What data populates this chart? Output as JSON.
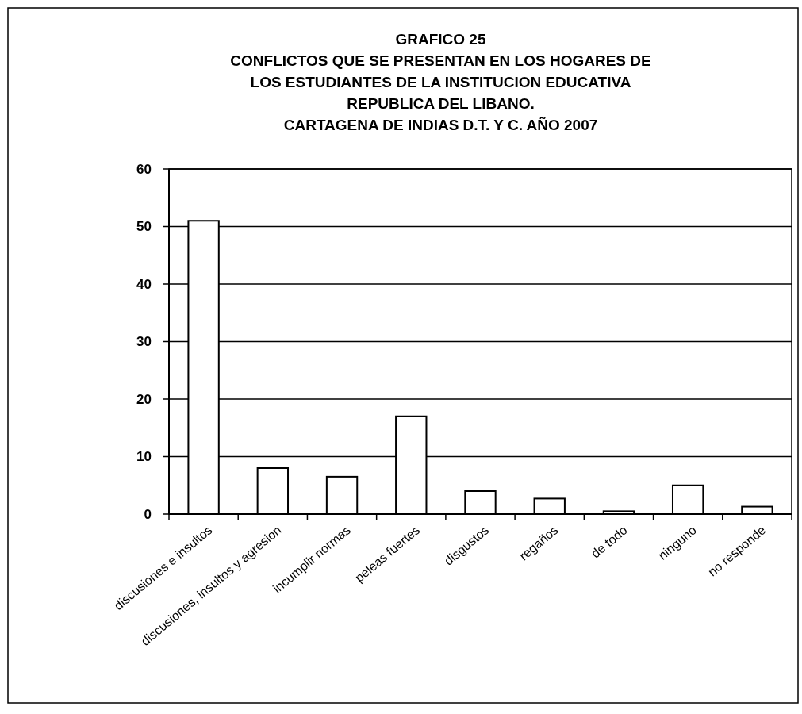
{
  "chart_data": {
    "type": "bar",
    "title": "GRAFICO 25\nCONFLICTOS QUE SE PRESENTAN EN LOS HOGARES DE\nLOS ESTUDIANTES DE LA INSTITUCION EDUCATIVA\nREPUBLICA DEL LIBANO.\nCARTAGENA DE INDIAS D.T. Y C. AÑO 2007",
    "categories": [
      "discusiones e insultos",
      "discusiones, insultos y agresion",
      "incumplir normas",
      "peleas fuertes",
      "disgustos",
      "regaños",
      "de todo",
      "ninguno",
      "no responde"
    ],
    "values": [
      51,
      8,
      6.5,
      17,
      4,
      2.7,
      0.5,
      5,
      1.3
    ],
    "color": "#ffffff",
    "ylim": [
      0,
      60
    ],
    "yticks": [
      0,
      10,
      20,
      30,
      40,
      50,
      60
    ],
    "grid": "y"
  }
}
